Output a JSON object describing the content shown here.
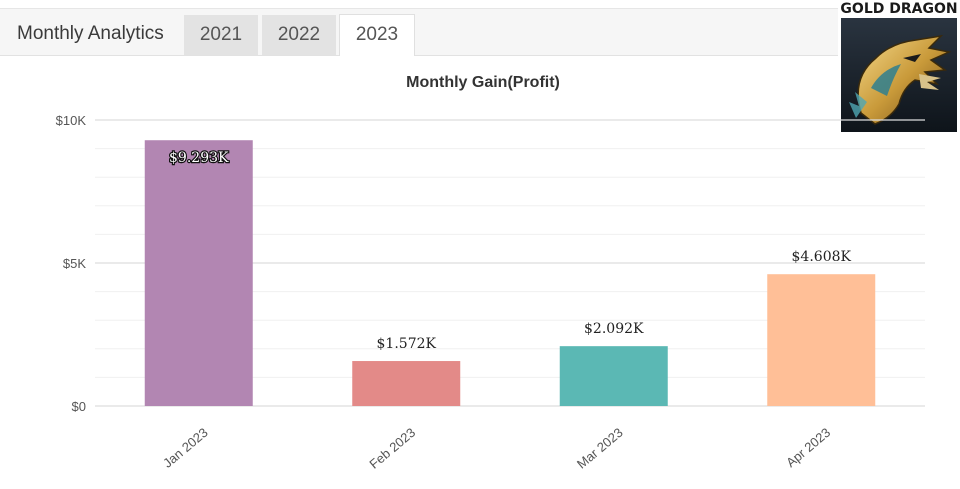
{
  "header": {
    "title": "Monthly Analytics",
    "tabs": [
      {
        "label": "2021",
        "active": false
      },
      {
        "label": "2022",
        "active": false
      },
      {
        "label": "2023",
        "active": true
      }
    ]
  },
  "logo": {
    "text": "GOLD DRAGON",
    "icon": "dragon-head-logo"
  },
  "colors": {
    "Jan 2023": "#b286b2",
    "Feb 2023": "#e38a88",
    "Mar 2023": "#5bb8b4",
    "Apr 2023": "#ffbf97"
  },
  "chart_data": {
    "type": "bar",
    "title": "Monthly Gain(Profit)",
    "categories": [
      "Jan 2023",
      "Feb 2023",
      "Mar 2023",
      "Apr 2023"
    ],
    "values": [
      9293,
      1572,
      2092,
      4608
    ],
    "data_labels": [
      "$9.293K",
      "$1.572K",
      "$2.092K",
      "$4.608K"
    ],
    "y_ticks": [
      {
        "value": 0,
        "label": "$0"
      },
      {
        "value": 5000,
        "label": "$5K"
      },
      {
        "value": 10000,
        "label": "$10K"
      }
    ],
    "ylim": [
      0,
      10000
    ],
    "grid": true,
    "xlabel": "",
    "ylabel": ""
  }
}
